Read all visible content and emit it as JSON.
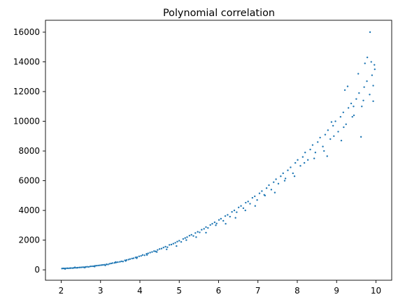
{
  "chart_data": {
    "type": "scatter",
    "title": "Polynomial correlation",
    "xlabel": "",
    "ylabel": "",
    "xlim": [
      1.6,
      10.4
    ],
    "ylim": [
      -700,
      16800
    ],
    "x_ticks": [
      2,
      3,
      4,
      5,
      6,
      7,
      8,
      9,
      10
    ],
    "y_ticks": [
      0,
      2000,
      4000,
      6000,
      8000,
      10000,
      12000,
      14000,
      16000
    ],
    "grid": false,
    "legend": "none",
    "marker_color": "#1f77b4",
    "series": [
      {
        "points": [
          [
            2.02,
            86
          ],
          [
            2.05,
            98
          ],
          [
            2.08,
            90
          ],
          [
            2.11,
            95
          ],
          [
            2.15,
            110
          ],
          [
            2.18,
            102
          ],
          [
            2.22,
            112
          ],
          [
            2.25,
            120
          ],
          [
            2.29,
            115
          ],
          [
            2.32,
            130
          ],
          [
            2.36,
            140
          ],
          [
            2.4,
            135
          ],
          [
            2.43,
            150
          ],
          [
            2.47,
            158
          ],
          [
            2.51,
            165
          ],
          [
            2.55,
            180
          ],
          [
            2.58,
            175
          ],
          [
            2.62,
            196
          ],
          [
            2.66,
            205
          ],
          [
            2.7,
            198
          ],
          [
            2.74,
            230
          ],
          [
            2.78,
            238
          ],
          [
            2.82,
            245
          ],
          [
            2.86,
            270
          ],
          [
            2.9,
            280
          ],
          [
            2.94,
            292
          ],
          [
            2.98,
            305
          ],
          [
            3.02,
            320
          ],
          [
            3.06,
            330
          ],
          [
            3.1,
            345
          ],
          [
            3.15,
            372
          ],
          [
            3.19,
            360
          ],
          [
            3.23,
            410
          ],
          [
            3.27,
            430
          ],
          [
            3.31,
            455
          ],
          [
            3.36,
            470
          ],
          [
            3.4,
            500
          ],
          [
            3.44,
            520
          ],
          [
            3.49,
            540
          ],
          [
            3.53,
            575
          ],
          [
            3.57,
            560
          ],
          [
            3.62,
            640
          ],
          [
            3.66,
            660
          ],
          [
            3.71,
            690
          ],
          [
            3.75,
            725
          ],
          [
            3.8,
            760
          ],
          [
            3.84,
            780
          ],
          [
            3.89,
            835
          ],
          [
            3.93,
            850
          ],
          [
            3.98,
            910
          ],
          [
            4.03,
            940
          ],
          [
            4.07,
            1000
          ],
          [
            4.12,
            980
          ],
          [
            4.17,
            1080
          ],
          [
            4.21,
            1110
          ],
          [
            4.26,
            1160
          ],
          [
            4.31,
            1200
          ],
          [
            4.36,
            1260
          ],
          [
            4.4,
            1240
          ],
          [
            4.45,
            1340
          ],
          [
            4.5,
            1400
          ],
          [
            4.55,
            1430
          ],
          [
            4.6,
            1500
          ],
          [
            4.65,
            1560
          ],
          [
            4.7,
            1520
          ],
          [
            4.75,
            1680
          ],
          [
            4.8,
            1700
          ],
          [
            4.85,
            1760
          ],
          [
            4.9,
            1820
          ],
          [
            4.95,
            1900
          ],
          [
            5.0,
            1960
          ],
          [
            5.05,
            1880
          ],
          [
            5.1,
            2080
          ],
          [
            5.15,
            2140
          ],
          [
            5.2,
            2200
          ],
          [
            5.26,
            2300
          ],
          [
            5.31,
            2360
          ],
          [
            5.36,
            2280
          ],
          [
            5.41,
            2480
          ],
          [
            5.47,
            2560
          ],
          [
            5.52,
            2520
          ],
          [
            5.57,
            2700
          ],
          [
            5.63,
            2760
          ],
          [
            5.68,
            2880
          ],
          [
            5.73,
            2820
          ],
          [
            5.79,
            3020
          ],
          [
            5.84,
            3100
          ],
          [
            5.9,
            3200
          ],
          [
            5.95,
            3120
          ],
          [
            6.01,
            3360
          ],
          [
            6.06,
            3440
          ],
          [
            6.12,
            3300
          ],
          [
            6.17,
            3620
          ],
          [
            6.23,
            3700
          ],
          [
            6.29,
            3580
          ],
          [
            6.34,
            3900
          ],
          [
            6.4,
            4000
          ],
          [
            6.46,
            3880
          ],
          [
            6.51,
            4200
          ],
          [
            6.57,
            4300
          ],
          [
            6.63,
            4150
          ],
          [
            6.69,
            4520
          ],
          [
            6.75,
            4600
          ],
          [
            6.8,
            4450
          ],
          [
            6.86,
            4850
          ],
          [
            6.92,
            4950
          ],
          [
            6.98,
            4700
          ],
          [
            7.04,
            5150
          ],
          [
            7.1,
            5300
          ],
          [
            7.16,
            5050
          ],
          [
            7.22,
            5500
          ],
          [
            7.28,
            5700
          ],
          [
            7.34,
            5400
          ],
          [
            7.4,
            5900
          ],
          [
            7.46,
            6100
          ],
          [
            7.52,
            5800
          ],
          [
            7.58,
            6300
          ],
          [
            7.64,
            6500
          ],
          [
            7.7,
            6150
          ],
          [
            7.76,
            6700
          ],
          [
            7.83,
            6900
          ],
          [
            7.89,
            6500
          ],
          [
            7.95,
            7200
          ],
          [
            8.01,
            7400
          ],
          [
            8.08,
            7000
          ],
          [
            8.14,
            7600
          ],
          [
            8.2,
            7900
          ],
          [
            8.27,
            7400
          ],
          [
            8.33,
            8100
          ],
          [
            8.39,
            8400
          ],
          [
            8.46,
            7900
          ],
          [
            8.52,
            8600
          ],
          [
            8.58,
            8900
          ],
          [
            8.65,
            8300
          ],
          [
            8.71,
            9100
          ],
          [
            8.78,
            9400
          ],
          [
            8.84,
            8800
          ],
          [
            8.91,
            9700
          ],
          [
            8.97,
            10000
          ],
          [
            9.04,
            9300
          ],
          [
            9.1,
            10300
          ],
          [
            9.17,
            10600
          ],
          [
            9.24,
            9800
          ],
          [
            9.3,
            10900
          ],
          [
            9.37,
            11200
          ],
          [
            9.44,
            10400
          ],
          [
            9.5,
            11500
          ],
          [
            9.57,
            11900
          ],
          [
            9.64,
            11000
          ],
          [
            9.7,
            12300
          ],
          [
            9.77,
            12700
          ],
          [
            9.84,
            11800
          ],
          [
            9.9,
            13100
          ],
          [
            9.97,
            13500
          ],
          [
            2.1,
            60
          ],
          [
            2.35,
            165
          ],
          [
            2.6,
            150
          ],
          [
            2.85,
            220
          ],
          [
            3.12,
            300
          ],
          [
            3.38,
            520
          ],
          [
            3.64,
            600
          ],
          [
            3.92,
            780
          ],
          [
            4.18,
            1000
          ],
          [
            4.43,
            1200
          ],
          [
            4.68,
            1380
          ],
          [
            4.93,
            1600
          ],
          [
            5.18,
            2000
          ],
          [
            5.43,
            2200
          ],
          [
            5.68,
            2500
          ],
          [
            5.93,
            3000
          ],
          [
            6.18,
            3100
          ],
          [
            6.43,
            3500
          ],
          [
            6.68,
            4000
          ],
          [
            6.93,
            4300
          ],
          [
            7.18,
            5000
          ],
          [
            7.43,
            5200
          ],
          [
            7.68,
            6000
          ],
          [
            7.93,
            6300
          ],
          [
            8.18,
            7200
          ],
          [
            8.43,
            7500
          ],
          [
            8.68,
            8000
          ],
          [
            8.93,
            9000
          ],
          [
            9.18,
            9600
          ],
          [
            9.43,
            11000
          ],
          [
            9.68,
            11400
          ],
          [
            9.93,
            12400
          ],
          [
            9.85,
            16000
          ],
          [
            9.62,
            8950
          ],
          [
            9.28,
            12350
          ],
          [
            9.78,
            14300
          ],
          [
            9.93,
            11350
          ],
          [
            9.12,
            8700
          ],
          [
            9.4,
            10300
          ],
          [
            9.55,
            13200
          ],
          [
            9.72,
            13900
          ],
          [
            9.88,
            14000
          ],
          [
            9.96,
            13800
          ],
          [
            8.87,
            9950
          ],
          [
            8.76,
            7650
          ],
          [
            9.21,
            12100
          ]
        ]
      }
    ]
  }
}
